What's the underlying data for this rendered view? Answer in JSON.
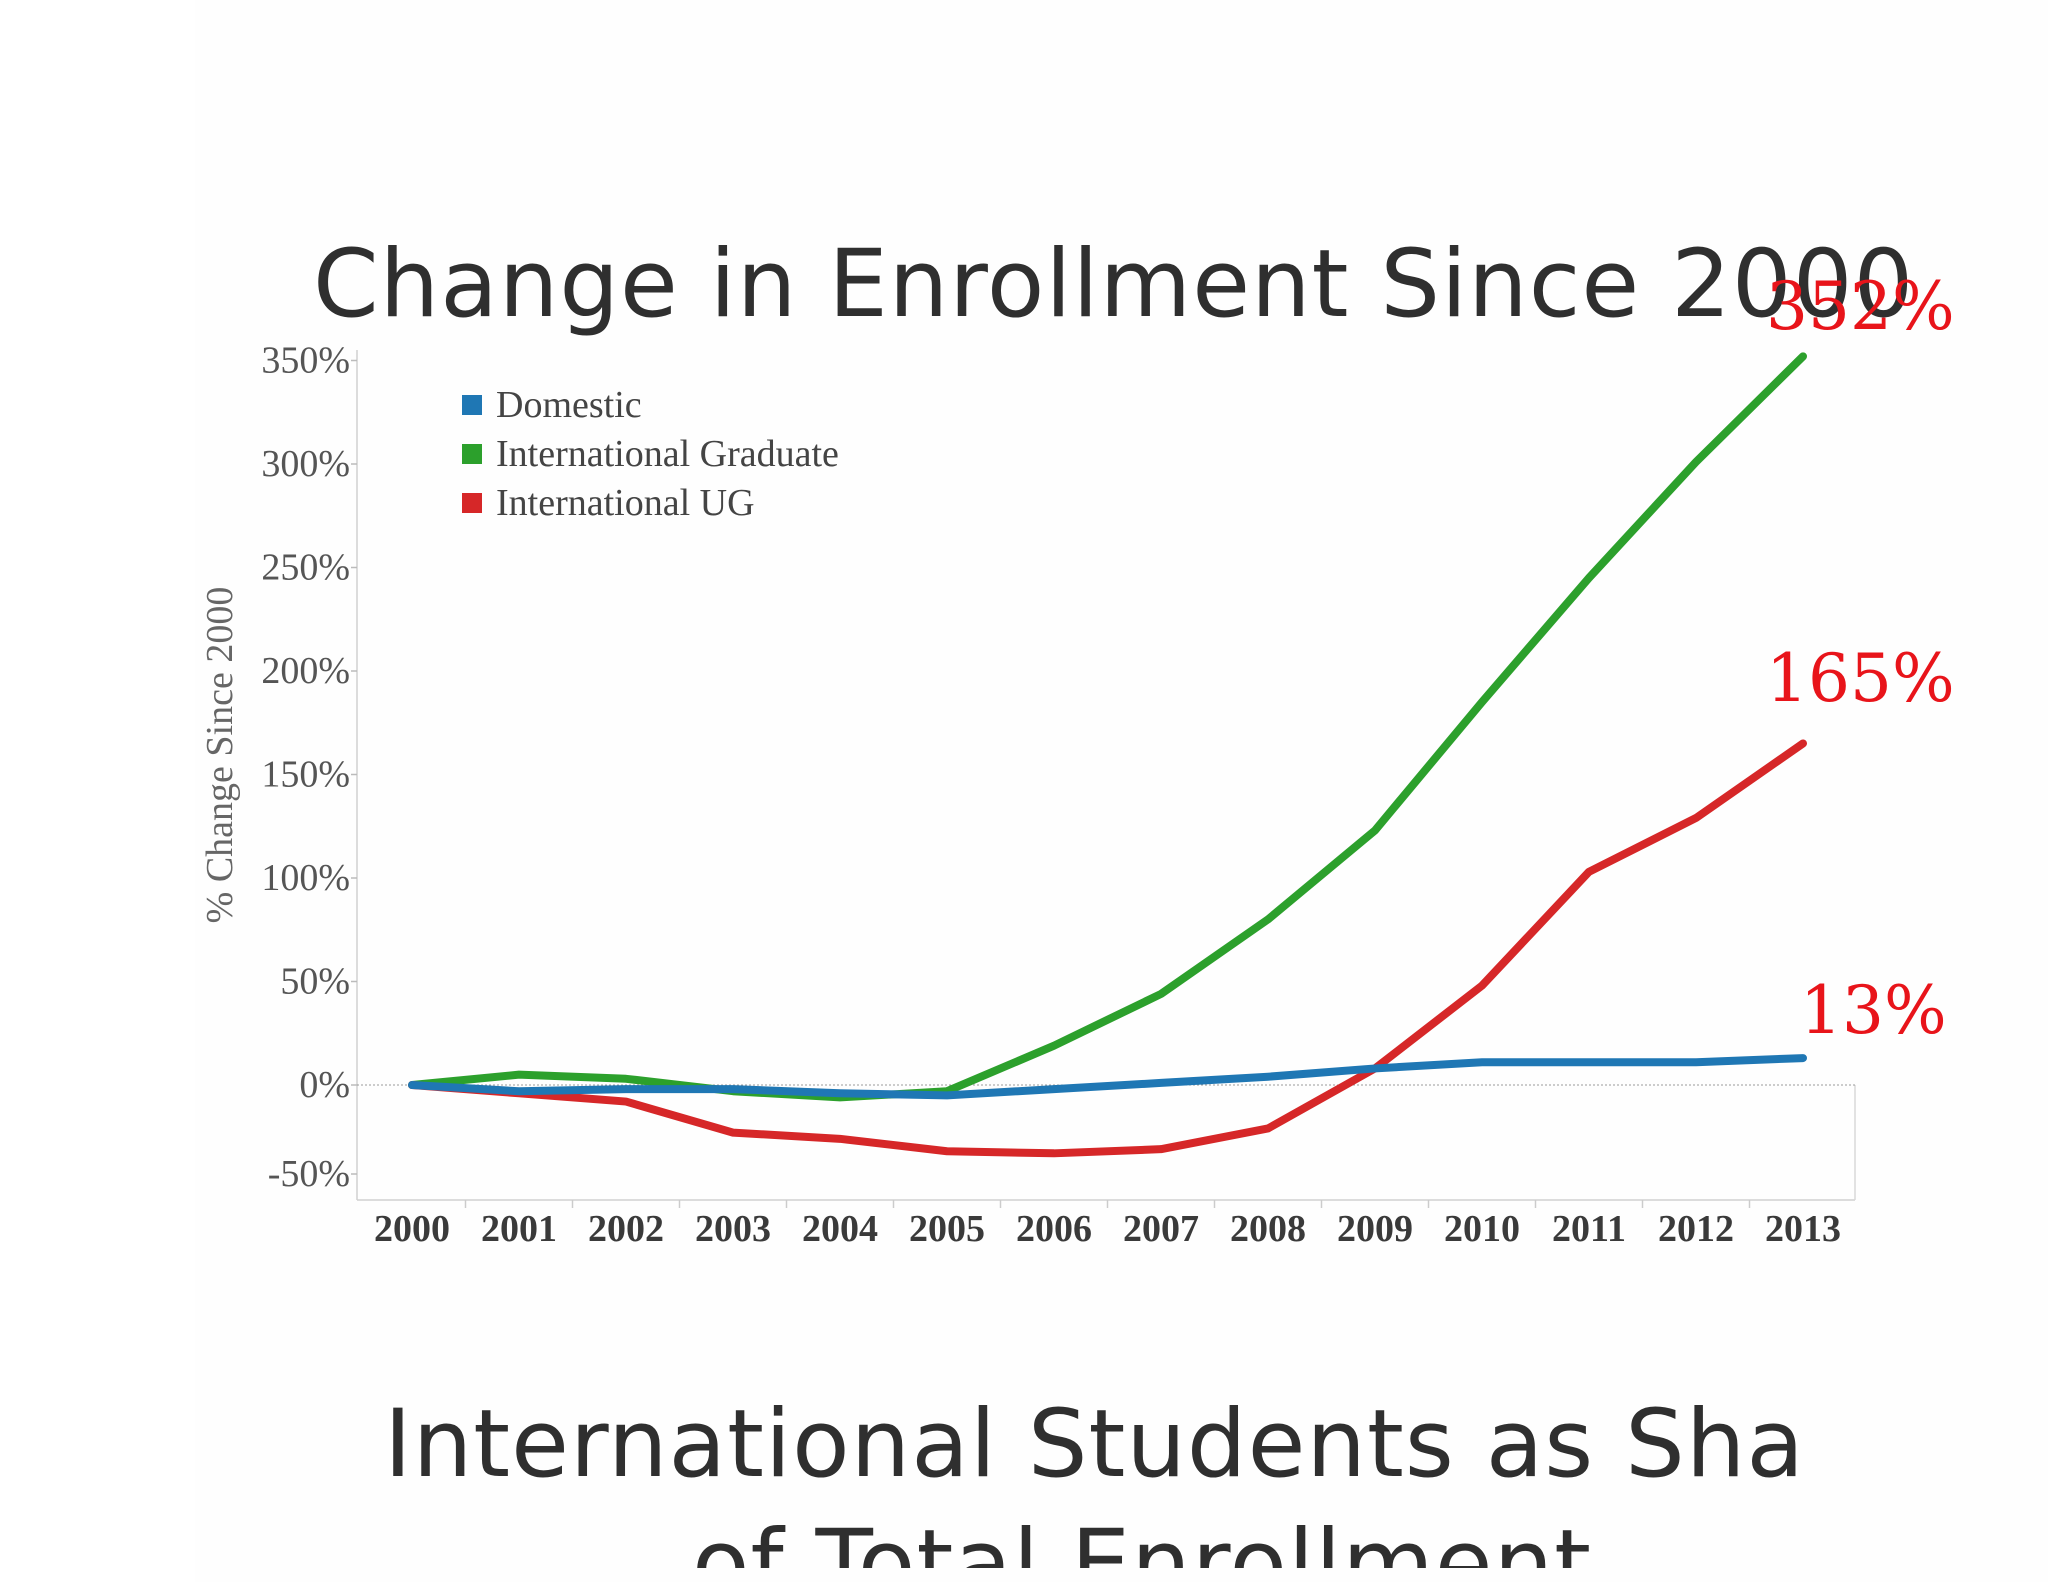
{
  "slide": {
    "title": "Change in Enrollment Since 2000",
    "next_title_line1": "International Students as Share",
    "next_title_line2": "of Total Enrollment"
  },
  "chart_data": {
    "type": "line",
    "title": "",
    "xlabel": "",
    "ylabel": "% Change Since 2000",
    "x": [
      "2000",
      "2001",
      "2002",
      "2003",
      "2004",
      "2005",
      "2006",
      "2007",
      "2008",
      "2009",
      "2010",
      "2011",
      "2012",
      "2013"
    ],
    "ylim": [
      -55,
      355
    ],
    "yticks": [
      350,
      300,
      250,
      200,
      150,
      100,
      50,
      0,
      -50
    ],
    "ytick_labels": [
      "350%",
      "300%",
      "250%",
      "200%",
      "150%",
      "100%",
      "50%",
      "0%",
      "-50%"
    ],
    "series": [
      {
        "name": "Domestic",
        "color": "#1f77b4",
        "values": [
          0,
          -3,
          -2,
          -2,
          -4,
          -5,
          -2,
          1,
          4,
          8,
          11,
          11,
          11,
          13
        ]
      },
      {
        "name": "International Graduate",
        "color": "#2ca02c",
        "values": [
          0,
          5,
          3,
          -3,
          -6,
          -3,
          19,
          44,
          80,
          123,
          185,
          245,
          301,
          352
        ]
      },
      {
        "name": "International UG",
        "color": "#d62728",
        "values": [
          0,
          -4,
          -8,
          -23,
          -26,
          -32,
          -33,
          -31,
          -21,
          8,
          48,
          103,
          129,
          165
        ]
      }
    ],
    "legend_position": "top-left",
    "grid": false,
    "callouts": [
      "352%",
      "165%",
      "13%"
    ]
  }
}
